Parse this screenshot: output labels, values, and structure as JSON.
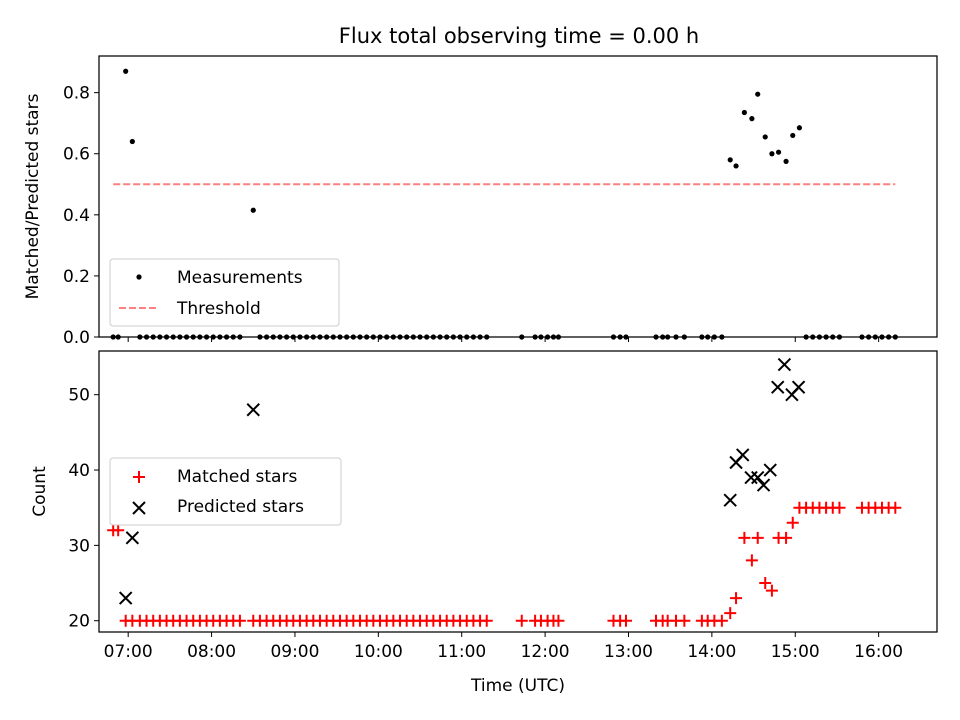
{
  "title": "Flux total observing time = 0.00 h",
  "colors": {
    "measurement": "#000000",
    "threshold": "#ff8080",
    "matched": "#ff0000",
    "predicted": "#000000"
  },
  "chart_data": [
    {
      "type": "scatter",
      "ylabel": "Matched/Predicted stars",
      "xlabel": "",
      "xlim": [
        6.65,
        16.7
      ],
      "ylim": [
        0,
        0.92
      ],
      "yticks": [
        0.0,
        0.2,
        0.4,
        0.6,
        0.8
      ],
      "ytick_labels": [
        "0.0",
        "0.2",
        "0.4",
        "0.6",
        "0.8"
      ],
      "legend_position": "lower-left",
      "series": [
        {
          "name": "Measurements",
          "x": [
            6.82,
            6.88,
            6.97,
            7.05,
            7.14,
            7.22,
            7.3,
            7.38,
            7.46,
            7.54,
            7.62,
            7.7,
            7.78,
            7.86,
            7.94,
            8.02,
            8.1,
            8.18,
            8.26,
            8.34,
            8.5,
            8.58,
            8.66,
            8.74,
            8.82,
            8.9,
            8.98,
            9.06,
            9.14,
            9.22,
            9.3,
            9.38,
            9.46,
            9.54,
            9.62,
            9.7,
            9.78,
            9.86,
            9.94,
            10.02,
            10.1,
            10.18,
            10.26,
            10.34,
            10.42,
            10.5,
            10.58,
            10.66,
            10.74,
            10.82,
            10.9,
            10.98,
            11.06,
            11.14,
            11.22,
            11.3,
            11.72,
            11.88,
            11.95,
            12.03,
            12.1,
            12.16,
            12.82,
            12.9,
            12.97,
            13.33,
            13.41,
            13.47,
            13.57,
            13.67,
            13.88,
            13.95,
            14.03,
            14.12,
            14.22,
            14.29,
            14.39,
            14.48,
            14.55,
            14.64,
            14.72,
            14.8,
            14.89,
            14.97,
            15.05,
            15.13,
            15.21,
            15.29,
            15.37,
            15.45,
            15.53,
            15.8,
            15.88,
            15.96,
            16.04,
            16.12,
            16.2
          ],
          "y": [
            0,
            0,
            0.87,
            0.64,
            0,
            0,
            0,
            0,
            0,
            0,
            0,
            0,
            0,
            0,
            0,
            0,
            0,
            0,
            0,
            0,
            0.415,
            0,
            0,
            0,
            0,
            0,
            0,
            0,
            0,
            0,
            0,
            0,
            0,
            0,
            0,
            0,
            0,
            0,
            0,
            0,
            0,
            0,
            0,
            0,
            0,
            0,
            0,
            0,
            0,
            0,
            0,
            0,
            0,
            0,
            0,
            0,
            0,
            0,
            0,
            0,
            0,
            0,
            0,
            0,
            0,
            0,
            0,
            0,
            0,
            0,
            0,
            0,
            0,
            0,
            0.58,
            0.56,
            0.735,
            0.715,
            0.795,
            0.655,
            0.6,
            0.605,
            0.575,
            0.66,
            0.685,
            0,
            0,
            0,
            0,
            0,
            0,
            0,
            0,
            0,
            0,
            0,
            0
          ]
        },
        {
          "name": "Threshold",
          "x": [
            6.82,
            16.2
          ],
          "y": [
            0.5,
            0.5
          ]
        }
      ]
    },
    {
      "type": "scatter",
      "ylabel": "Count",
      "xlabel": "Time (UTC)",
      "xlim": [
        6.65,
        16.7
      ],
      "ylim": [
        18.5,
        55.8
      ],
      "yticks": [
        20,
        30,
        40,
        50
      ],
      "ytick_labels": [
        "20",
        "30",
        "40",
        "50"
      ],
      "xticks": [
        7,
        8,
        9,
        10,
        11,
        12,
        13,
        14,
        15,
        16
      ],
      "xtick_labels": [
        "07:00",
        "08:00",
        "09:00",
        "10:00",
        "11:00",
        "12:00",
        "13:00",
        "14:00",
        "15:00",
        "16:00"
      ],
      "legend_position": "center-left",
      "series": [
        {
          "name": "Matched stars",
          "x": [
            6.82,
            6.88,
            6.97,
            7.05,
            7.14,
            7.22,
            7.3,
            7.38,
            7.46,
            7.54,
            7.62,
            7.7,
            7.78,
            7.86,
            7.94,
            8.02,
            8.1,
            8.18,
            8.26,
            8.34,
            8.5,
            8.58,
            8.66,
            8.74,
            8.82,
            8.9,
            8.98,
            9.06,
            9.14,
            9.22,
            9.3,
            9.38,
            9.46,
            9.54,
            9.62,
            9.7,
            9.78,
            9.86,
            9.94,
            10.02,
            10.1,
            10.18,
            10.26,
            10.34,
            10.42,
            10.5,
            10.58,
            10.66,
            10.74,
            10.82,
            10.9,
            10.98,
            11.06,
            11.14,
            11.22,
            11.3,
            11.72,
            11.88,
            11.95,
            12.03,
            12.1,
            12.16,
            12.82,
            12.9,
            12.97,
            13.33,
            13.41,
            13.47,
            13.57,
            13.67,
            13.88,
            13.95,
            14.03,
            14.12,
            14.22,
            14.29,
            14.39,
            14.48,
            14.55,
            14.64,
            14.72,
            14.8,
            14.89,
            14.97,
            15.05,
            15.13,
            15.21,
            15.29,
            15.37,
            15.45,
            15.53,
            15.8,
            15.88,
            15.96,
            16.04,
            16.12,
            16.2
          ],
          "y": [
            32,
            32,
            20,
            20,
            20,
            20,
            20,
            20,
            20,
            20,
            20,
            20,
            20,
            20,
            20,
            20,
            20,
            20,
            20,
            20,
            20,
            20,
            20,
            20,
            20,
            20,
            20,
            20,
            20,
            20,
            20,
            20,
            20,
            20,
            20,
            20,
            20,
            20,
            20,
            20,
            20,
            20,
            20,
            20,
            20,
            20,
            20,
            20,
            20,
            20,
            20,
            20,
            20,
            20,
            20,
            20,
            20,
            20,
            20,
            20,
            20,
            20,
            20,
            20,
            20,
            20,
            20,
            20,
            20,
            20,
            20,
            20,
            20,
            20,
            21,
            23,
            31,
            28,
            31,
            25,
            24,
            31,
            31,
            33,
            35,
            35,
            35,
            35,
            35,
            35,
            35,
            35,
            35,
            35,
            35,
            35,
            35
          ]
        },
        {
          "name": "Predicted stars",
          "x": [
            6.97,
            7.05,
            8.5,
            14.22,
            14.29,
            14.37,
            14.47,
            14.55,
            14.62,
            14.7,
            14.79,
            14.87,
            14.96,
            15.04
          ],
          "y": [
            23,
            31,
            48,
            36,
            41,
            42,
            39,
            39,
            38,
            40,
            51,
            54,
            50,
            51
          ]
        }
      ]
    }
  ]
}
